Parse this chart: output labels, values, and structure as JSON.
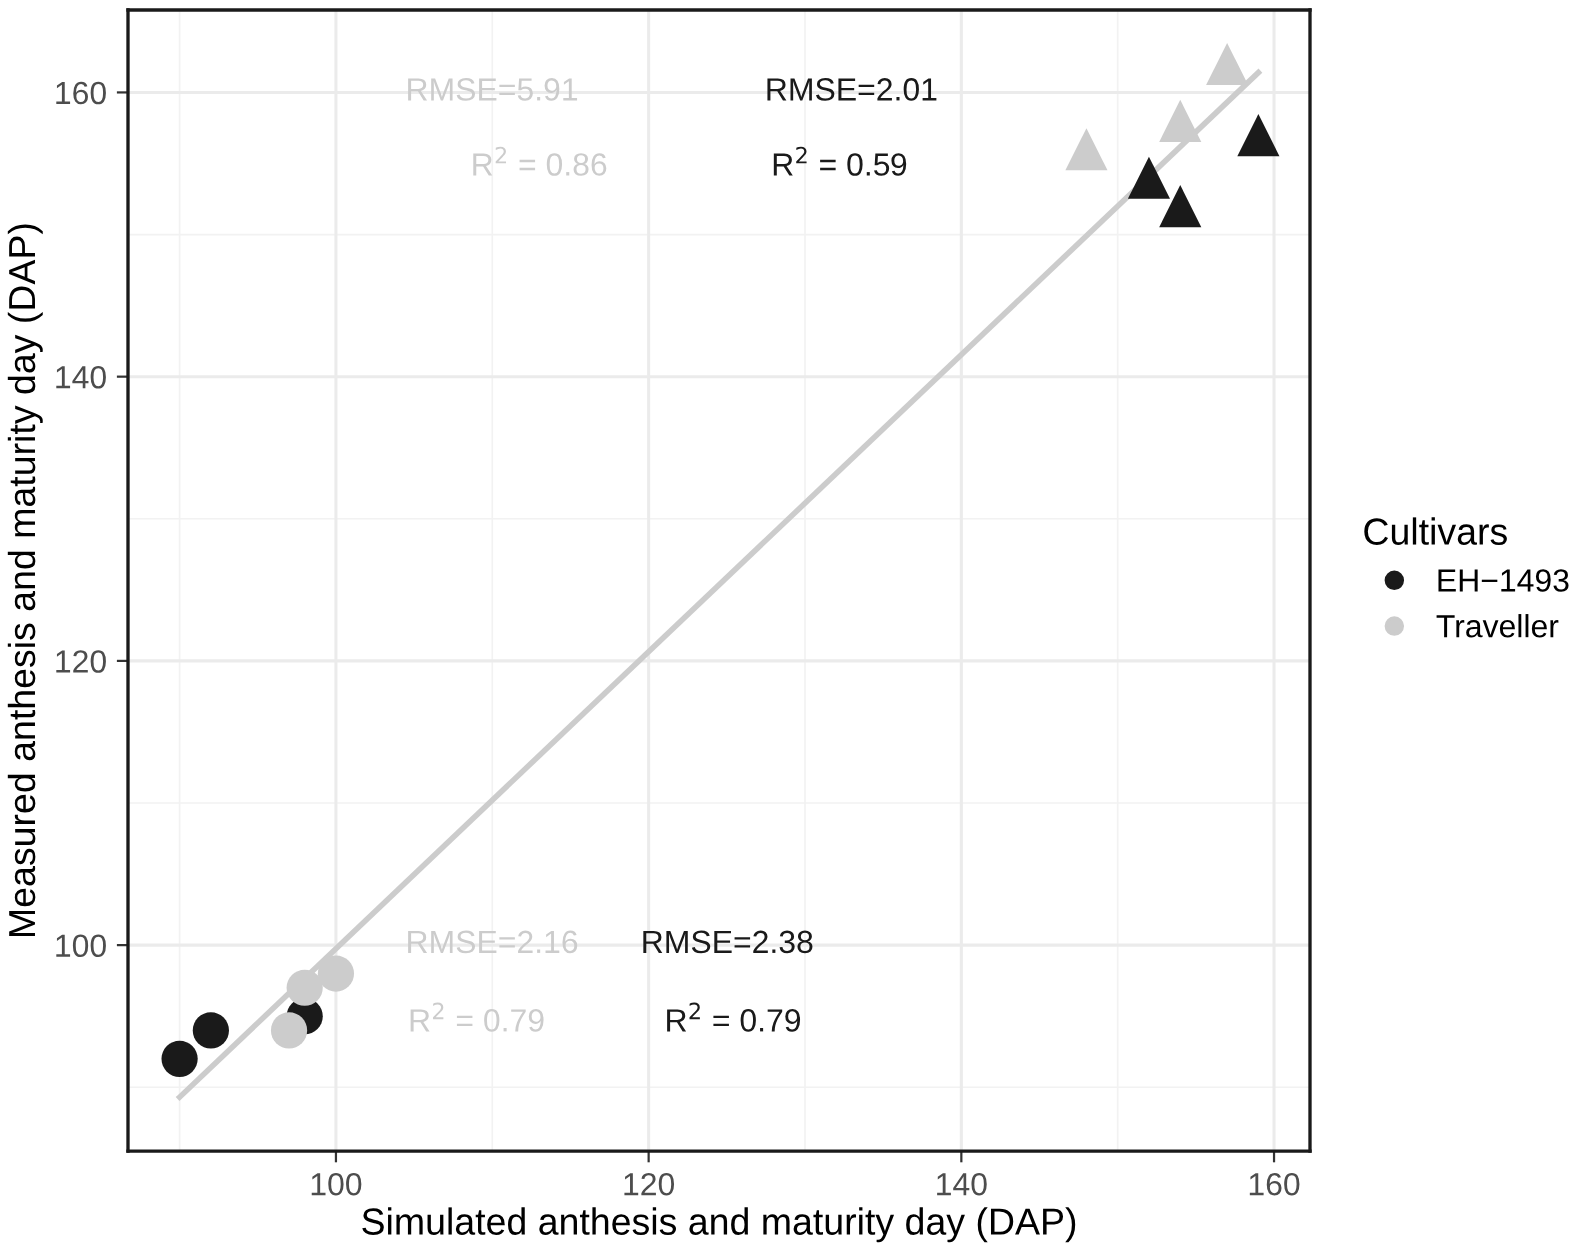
{
  "chart_data": {
    "type": "scatter",
    "xlabel": "Simulated anthesis and maturity day (DAP)",
    "ylabel": "Measured anthesis and maturity day (DAP)",
    "legend_title": "Cultivars",
    "legend": "right",
    "grid": true,
    "xlim": [
      86.7,
      162.3
    ],
    "ylim": [
      85.5,
      165.8
    ],
    "xticks": [
      100,
      120,
      140,
      160
    ],
    "yticks": [
      100,
      120,
      140,
      160
    ],
    "series": [
      {
        "name": "EH−1493",
        "color": "#1a1a1a",
        "marker": "circle",
        "x": [
          90,
          92,
          98
        ],
        "values": [
          92,
          94,
          95
        ]
      },
      {
        "name": "Traveller",
        "color": "#cccccc",
        "marker": "circle",
        "x": [
          97,
          98,
          100
        ],
        "values": [
          94,
          97,
          98
        ]
      },
      {
        "color": "#1a1a1a",
        "marker": "triangle",
        "x": [
          152,
          154,
          159
        ],
        "values": [
          154,
          152,
          157
        ]
      },
      {
        "color": "#cccccc",
        "marker": "triangle",
        "x": [
          148,
          154,
          157
        ],
        "values": [
          156,
          158,
          162
        ]
      },
      {
        "type": "line",
        "color": "#cccccc",
        "marker": "none",
        "x": [
          90,
          159
        ],
        "values": [
          89.3,
          161.4
        ]
      }
    ],
    "annotations": [
      "RMSE=5.91",
      "RMSE=2.01",
      "R$^{2}$ = 0.86",
      "R$^{2}$ = 0.59",
      "RMSE=2.16",
      "RMSE=2.38",
      "R$^{2}$ = 0.79",
      "R$^{2}$ = 0.79"
    ]
  }
}
